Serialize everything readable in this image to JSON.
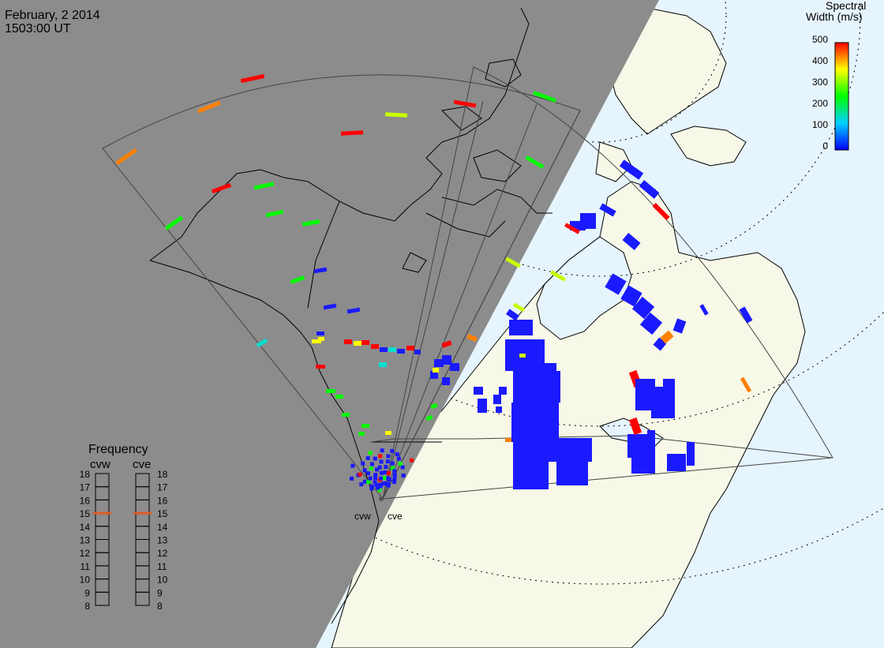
{
  "header": {
    "date": "February, 2 2014",
    "time": "1503:00 UT"
  },
  "colorbar": {
    "title_line1": "Spectral",
    "title_line2": "Width (m/s)",
    "ticks": [
      "500",
      "400",
      "300",
      "200",
      "100",
      "0"
    ],
    "colors": [
      "#0000ff",
      "#00d0ff",
      "#00ff00",
      "#ffff00",
      "#ff0000"
    ]
  },
  "frequency": {
    "title": "Frequency",
    "left_label": "cvw",
    "right_label": "cve",
    "scale": [
      "18",
      "17",
      "16",
      "15",
      "14",
      "13",
      "12",
      "11",
      "10",
      "9",
      "8"
    ],
    "cvw_value": 15,
    "cve_value": 15
  },
  "radars": {
    "west": "cvw",
    "east": "cve"
  },
  "colors": {
    "night": "#8c8c8c",
    "ocean_day": "#e6f4fd",
    "land_day": "#f8f8e8",
    "echo_low": "#1a1aff",
    "marker": "#e05a20"
  }
}
